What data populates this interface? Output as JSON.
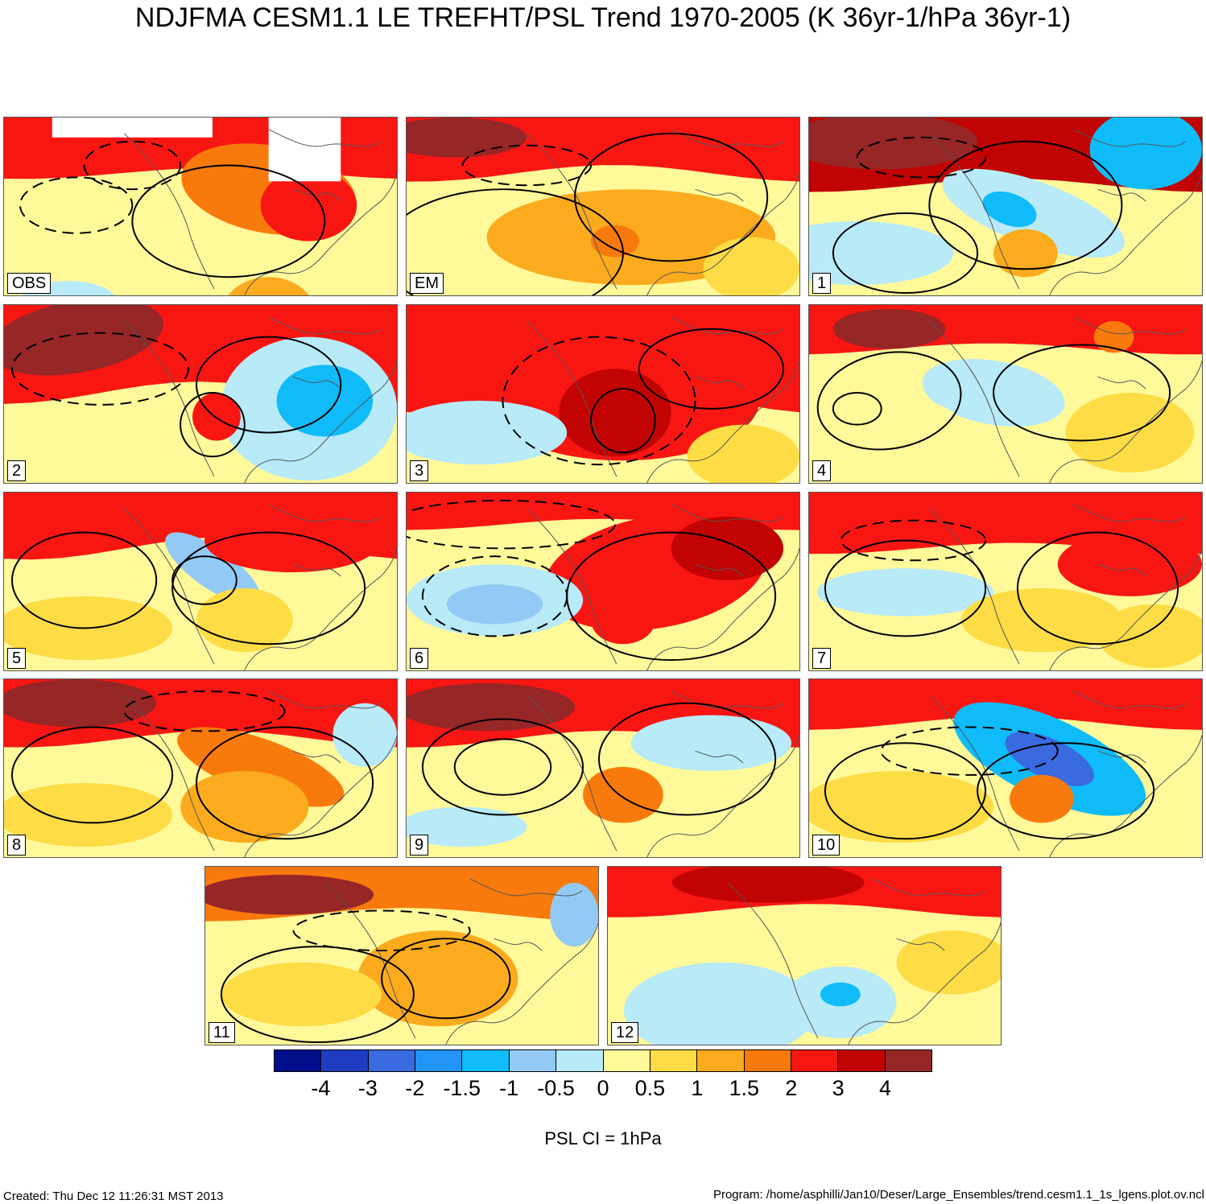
{
  "title": "NDJFMA CESM1.1 LE TREFHT/PSL Trend 1970-2005 (K 36yr-1/hPa 36yr-1)",
  "panels": [
    {
      "label": "OBS"
    },
    {
      "label": "EM"
    },
    {
      "label": "1"
    },
    {
      "label": "2"
    },
    {
      "label": "3"
    },
    {
      "label": "4"
    },
    {
      "label": "5"
    },
    {
      "label": "6"
    },
    {
      "label": "7"
    },
    {
      "label": "8"
    },
    {
      "label": "9"
    },
    {
      "label": "10"
    },
    {
      "label": "11"
    },
    {
      "label": "12"
    }
  ],
  "colorbar": {
    "colors": [
      "#000e8c",
      "#1f3cc2",
      "#3a6ae0",
      "#2194f5",
      "#0fbcf9",
      "#93caf5",
      "#b8eaf8",
      "#fff99a",
      "#fddc45",
      "#fbab1d",
      "#f97a0c",
      "#f81613",
      "#c10303",
      "#972626"
    ],
    "labels": [
      "-4",
      "-3",
      "-2",
      "-1.5",
      "-1",
      "-0.5",
      "0",
      "0.5",
      "1",
      "1.5",
      "2",
      "3",
      "4"
    ]
  },
  "contour_note": "PSL CI = 1hPa",
  "footer": {
    "created": "Created: Thu Dec 12 11:26:31 MST 2013",
    "program": "Program: /home/asphilli/Jan10/Deser/Large_Ensembles/trend.cesm1.1_1s_lgens.plot.ov.ncl"
  }
}
